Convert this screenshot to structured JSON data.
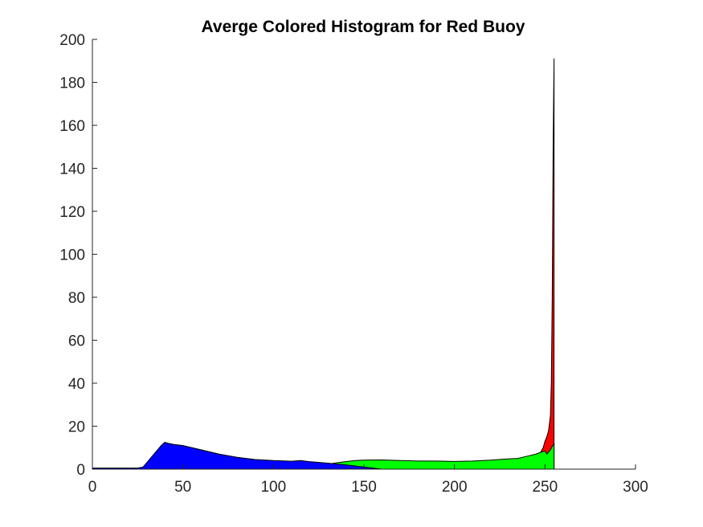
{
  "chart_data": {
    "type": "area",
    "title": "Averge Colored Histogram for Red Buoy",
    "xlabel": "",
    "ylabel": "",
    "xlim": [
      0,
      300
    ],
    "ylim": [
      0,
      200
    ],
    "xticks": [
      0,
      50,
      100,
      150,
      200,
      250,
      300
    ],
    "yticks": [
      0,
      20,
      40,
      60,
      80,
      100,
      120,
      140,
      160,
      180,
      200
    ],
    "grid": false,
    "legend": "none",
    "series": [
      {
        "color": "#ff0000",
        "x": [
          0,
          240,
          247,
          249,
          250,
          251,
          252,
          253,
          253.5,
          254,
          254.5,
          255
        ],
        "values": [
          0,
          0,
          7,
          10,
          13,
          15,
          18,
          25,
          40,
          80,
          150,
          191
        ]
      },
      {
        "color": "#00ff00",
        "x": [
          0,
          120,
          128,
          135,
          140,
          145,
          150,
          160,
          170,
          180,
          190,
          200,
          210,
          220,
          230,
          235,
          240,
          245,
          248,
          250,
          251,
          252,
          253,
          254,
          255
        ],
        "values": [
          0,
          0,
          2,
          3,
          3.5,
          4,
          4.2,
          4.3,
          4,
          3.8,
          3.8,
          3.6,
          3.8,
          4.2,
          4.8,
          5,
          6,
          7,
          8,
          8.5,
          7,
          8,
          9,
          10.5,
          12
        ]
      },
      {
        "color": "#0000ff",
        "x": [
          0,
          25,
          28,
          30,
          33,
          36,
          38,
          40,
          42,
          45,
          50,
          55,
          60,
          70,
          80,
          90,
          100,
          110,
          115,
          120,
          130,
          140,
          150,
          155,
          160,
          255
        ],
        "values": [
          0.5,
          0.5,
          1,
          3,
          6,
          9,
          11,
          12.5,
          12,
          11.5,
          11,
          10,
          9,
          7,
          5.5,
          4.5,
          4,
          3.7,
          4,
          3.5,
          2.8,
          2,
          1,
          0.5,
          0,
          0
        ]
      }
    ]
  }
}
